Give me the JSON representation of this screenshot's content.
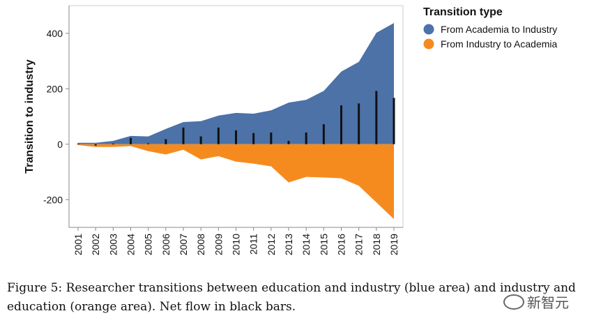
{
  "chart_data": {
    "type": "area",
    "title": "",
    "xlabel": "",
    "ylabel": "Transition to industry",
    "x": [
      2001,
      2002,
      2003,
      2004,
      2005,
      2006,
      2007,
      2008,
      2009,
      2010,
      2011,
      2012,
      2013,
      2014,
      2015,
      2016,
      2017,
      2018,
      2019
    ],
    "ylim": [
      -300,
      500
    ],
    "yticks": [
      -200,
      0,
      200,
      400
    ],
    "yticklabels": [
      "-200",
      "0",
      "200",
      "400"
    ],
    "series": [
      {
        "name": "From Academia to Industry",
        "color": "#4c72a8",
        "values": [
          5,
          5,
          12,
          30,
          28,
          55,
          80,
          83,
          103,
          113,
          110,
          122,
          150,
          160,
          192,
          262,
          297,
          402,
          437
        ]
      },
      {
        "name": "From Industry to Academia",
        "color": "#f58b1f",
        "values": [
          -3,
          -10,
          -10,
          -7,
          -25,
          -37,
          -20,
          -55,
          -43,
          -63,
          -70,
          -80,
          -138,
          -118,
          -120,
          -123,
          -150,
          -210,
          -270
        ]
      }
    ],
    "net_flow": {
      "color": "#111111",
      "values": [
        2,
        -5,
        2,
        23,
        3,
        18,
        60,
        28,
        60,
        50,
        40,
        42,
        12,
        42,
        72,
        140,
        147,
        192,
        167
      ]
    },
    "legend": {
      "title": "Transition type",
      "placement": "top-right"
    },
    "grid": false
  },
  "caption": "Figure 5: Researcher transitions between education and industry (blue area) and industry and education (orange area). Net flow in black bars.",
  "watermark": {
    "text": "新智元",
    "icon": "wechat-icon"
  }
}
